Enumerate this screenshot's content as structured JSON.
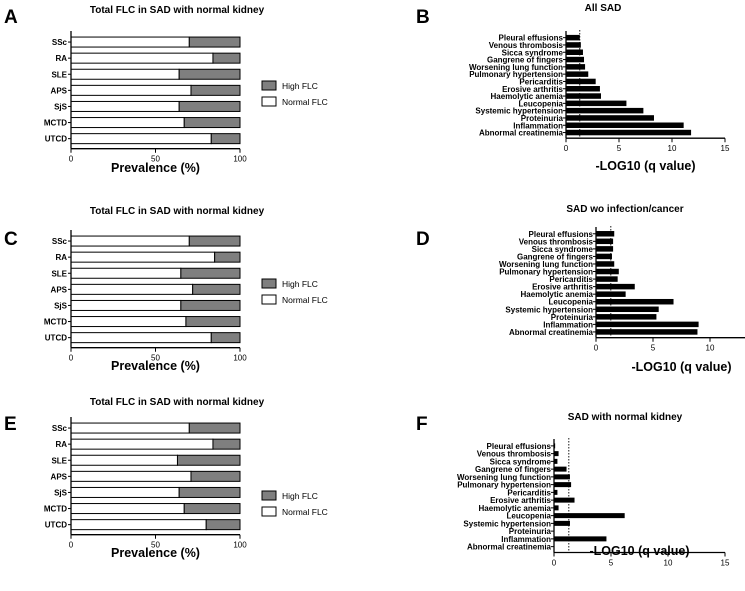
{
  "figure": {
    "panels": [
      "A",
      "B",
      "C",
      "D",
      "E",
      "F"
    ]
  },
  "colors": {
    "high": "#7f7f7f",
    "normal": "#ffffff",
    "bar": "#000000",
    "axis": "#000000"
  },
  "chart_data": [
    {
      "id": "A",
      "type": "bar",
      "orientation": "horizontal",
      "stacked": true,
      "title": "Total FLC in SAD with normal kidney",
      "categories": [
        "SSc",
        "RA",
        "SLE",
        "APS",
        "SjS",
        "MCTD",
        "UTCD"
      ],
      "series": [
        {
          "name": "Normal FLC",
          "values": [
            70,
            84,
            64,
            71,
            64,
            67,
            83
          ]
        },
        {
          "name": "High FLC",
          "values": [
            30,
            16,
            36,
            29,
            36,
            33,
            17
          ]
        }
      ],
      "legend": [
        "High FLC",
        "Normal FLC"
      ],
      "legend_position": "right",
      "xlabel": "Prevalence (%)",
      "xlim": [
        0,
        100
      ],
      "xticks": [
        0,
        50,
        100
      ]
    },
    {
      "id": "B",
      "type": "bar",
      "orientation": "horizontal",
      "title": "All SAD",
      "categories": [
        "Pleural effusions",
        "Venous thrombosis",
        "Sicca syndrome",
        "Gangrene of fingers",
        "Worsening lung function",
        "Pulmonary hypertension",
        "Pericarditis",
        "Erosive arthritis",
        "Haemolytic anemia",
        "Leucopenia",
        "Systemic hypertension",
        "Proteinuria",
        "Inflammation",
        "Abnormal creatinemia"
      ],
      "values": [
        1.3,
        1.4,
        1.6,
        1.7,
        1.8,
        2.1,
        2.8,
        3.2,
        3.3,
        5.7,
        7.3,
        8.3,
        11.1,
        11.8
      ],
      "threshold": 1.3,
      "xlabel": "-LOG10 (q value)",
      "xlim": [
        0,
        15
      ],
      "xticks": [
        0,
        5,
        10,
        15
      ]
    },
    {
      "id": "C",
      "type": "bar",
      "orientation": "horizontal",
      "stacked": true,
      "title": "Total FLC in SAD with normal kidney",
      "categories": [
        "SSc",
        "RA",
        "SLE",
        "APS",
        "SjS",
        "MCTD",
        "UTCD"
      ],
      "series": [
        {
          "name": "Normal FLC",
          "values": [
            70,
            85,
            65,
            72,
            65,
            68,
            83
          ]
        },
        {
          "name": "High FLC",
          "values": [
            30,
            15,
            35,
            28,
            35,
            32,
            17
          ]
        }
      ],
      "legend": [
        "High FLC",
        "Normal FLC"
      ],
      "legend_position": "right",
      "xlabel": "Prevalence (%)",
      "xlim": [
        0,
        100
      ],
      "xticks": [
        0,
        50,
        100
      ]
    },
    {
      "id": "D",
      "type": "bar",
      "orientation": "horizontal",
      "title": "SAD wo infection/cancer",
      "categories": [
        "Pleural effusions",
        "Venous thrombosis",
        "Sicca syndrome",
        "Gangrene of fingers",
        "Worsening lung function",
        "Pulmonary hypertension",
        "Pericarditis",
        "Erosive arthritis",
        "Haemolytic anemia",
        "Leucopenia",
        "Systemic hypertension",
        "Proteinuria",
        "Inflammation",
        "Abnormal creatinemia"
      ],
      "values": [
        1.6,
        1.5,
        1.5,
        1.4,
        1.6,
        2.0,
        1.9,
        3.4,
        2.6,
        6.8,
        5.5,
        5.3,
        9.0,
        8.9
      ],
      "threshold": 1.3,
      "xlabel": "-LOG10 (q value)",
      "xlim": [
        0,
        15
      ],
      "xticks": [
        0,
        5,
        10,
        15
      ]
    },
    {
      "id": "E",
      "type": "bar",
      "orientation": "horizontal",
      "stacked": true,
      "title": "Total FLC in SAD with normal kidney",
      "categories": [
        "SSc",
        "RA",
        "SLE",
        "APS",
        "SjS",
        "MCTD",
        "UTCD"
      ],
      "series": [
        {
          "name": "Normal FLC",
          "values": [
            70,
            84,
            63,
            71,
            64,
            67,
            80
          ]
        },
        {
          "name": "High FLC",
          "values": [
            30,
            16,
            37,
            29,
            36,
            33,
            20
          ]
        }
      ],
      "legend": [
        "High FLC",
        "Normal FLC"
      ],
      "legend_position": "right",
      "xlabel": "Prevalence (%)",
      "xlim": [
        0,
        100
      ],
      "xticks": [
        0,
        50,
        100
      ]
    },
    {
      "id": "F",
      "type": "bar",
      "orientation": "horizontal",
      "title": "SAD with normal kidney",
      "categories": [
        "Pleural effusions",
        "Venous thrombosis",
        "Sicca syndrome",
        "Gangrene of fingers",
        "Worsening lung function",
        "Pulmonary hypertension",
        "Pericarditis",
        "Erosive arthritis",
        "Haemolytic anemia",
        "Leucopenia",
        "Systemic hypertension",
        "Proteinuria",
        "Inflammation",
        "Abnormal creatinemia"
      ],
      "values": [
        0.1,
        0.4,
        0.3,
        1.1,
        1.4,
        1.5,
        0.3,
        1.8,
        0.4,
        6.2,
        1.4,
        0.0,
        4.6,
        0.0
      ],
      "threshold": 1.3,
      "xlabel": "-LOG10 (q value)",
      "xlim": [
        0,
        15
      ],
      "xticks": [
        0,
        5,
        10,
        15
      ]
    }
  ]
}
